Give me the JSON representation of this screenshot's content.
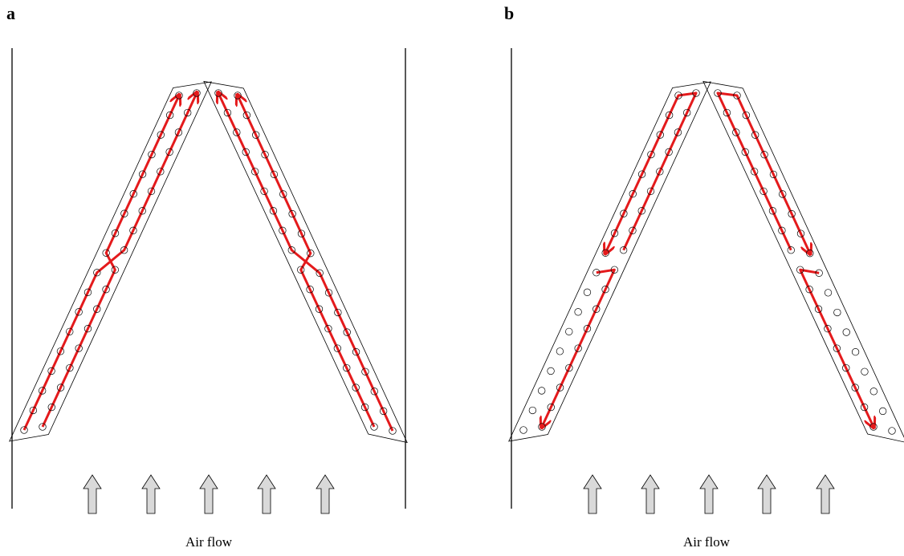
{
  "panels": [
    {
      "letter": "a",
      "caption": "Air flow",
      "flow": "same"
    },
    {
      "letter": "b",
      "caption": "Air flow",
      "flow": "split"
    }
  ],
  "colors": {
    "refrigerant_path": "#e41a1c",
    "outline": "#000000",
    "airflow_arrow_fill": "#d9d9d9"
  },
  "icons": {
    "airflow": "up-arrow-icon"
  },
  "tubes_per_row": 18,
  "rows_per_slab": 2
}
